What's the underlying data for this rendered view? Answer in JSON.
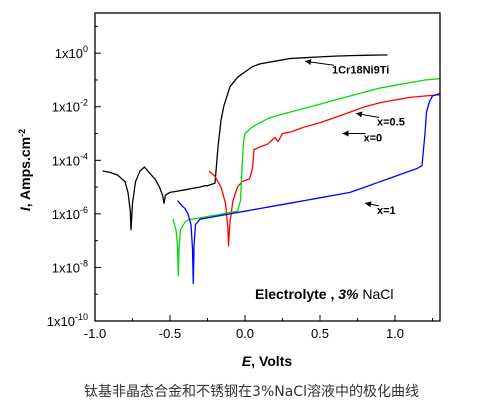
{
  "caption": "钛基非晶态合金和不锈钢在3%NaCl溶液中的极化曲线",
  "chart_data": {
    "type": "line",
    "title": "",
    "xlabel": "E",
    "xlabel_unit": "Volts",
    "ylabel": "I",
    "ylabel_unit": "Amps.cm",
    "ylabel_sup": "-2",
    "xlim": [
      -1.0,
      1.3
    ],
    "ylim_log10": [
      -10,
      1.5
    ],
    "y_scale": "log",
    "grid": false,
    "legend": "none",
    "x_ticks": [
      "-1.0",
      "-0.5",
      "0.0",
      "0.5",
      "1.0"
    ],
    "x_tick_values": [
      -1.0,
      -0.5,
      0.0,
      0.5,
      1.0
    ],
    "y_ticks": [
      {
        "base": "1x10",
        "exp": "0",
        "value": 0
      },
      {
        "base": "1x10",
        "exp": "-2",
        "value": -2
      },
      {
        "base": "1x10",
        "exp": "-4",
        "value": -4
      },
      {
        "base": "1x10",
        "exp": "-6",
        "value": -6
      },
      {
        "base": "1x10",
        "exp": "-8",
        "value": -8
      },
      {
        "base": "1x10",
        "exp": "-10",
        "value": -10
      }
    ],
    "annotations": [
      {
        "text": "1Cr18Ni9Ti",
        "x": 0.58,
        "y_log": -0.75,
        "arrow_to": [
          0.4,
          -0.3
        ]
      },
      {
        "text": "x=0.5",
        "x": 0.88,
        "y_log": -2.7,
        "arrow_to": [
          0.74,
          -2.25
        ]
      },
      {
        "text": "x=0",
        "x": 0.79,
        "y_log": -3.3,
        "arrow_to": [
          0.65,
          -3.0
        ]
      },
      {
        "text": "x=1",
        "x": 0.88,
        "y_log": -6.0,
        "arrow_to": [
          0.8,
          -5.6
        ]
      }
    ],
    "inset_text": {
      "label": "Electrolyte ,",
      "value": "3%",
      "unit": "NaCl"
    },
    "series": [
      {
        "color": "#000000",
        "x": [
          -0.95,
          -0.9,
          -0.85,
          -0.8,
          -0.78,
          -0.765,
          -0.76,
          -0.75,
          -0.73,
          -0.7,
          -0.67,
          -0.64,
          -0.6,
          -0.57,
          -0.55,
          -0.54,
          -0.53,
          -0.5,
          -0.45,
          -0.4,
          -0.35,
          -0.3,
          -0.27,
          -0.25,
          -0.2,
          -0.18,
          -0.16,
          -0.14,
          -0.12,
          -0.1,
          -0.05,
          0.0,
          0.05,
          0.1,
          0.2,
          0.3,
          0.4,
          0.5,
          0.6,
          0.7,
          0.8,
          0.9,
          0.95
        ],
        "y_log": [
          -4.4,
          -4.45,
          -4.55,
          -4.8,
          -5.2,
          -5.9,
          -6.6,
          -5.6,
          -4.8,
          -4.4,
          -4.25,
          -4.45,
          -4.7,
          -5.0,
          -5.3,
          -5.6,
          -5.3,
          -5.2,
          -5.15,
          -5.1,
          -5.05,
          -5.0,
          -4.95,
          -4.95,
          -4.85,
          -3.5,
          -2.5,
          -1.95,
          -1.6,
          -1.25,
          -0.9,
          -0.7,
          -0.5,
          -0.4,
          -0.3,
          -0.2,
          -0.17,
          -0.14,
          -0.11,
          -0.09,
          -0.08,
          -0.07,
          -0.07
        ]
      },
      {
        "color": "#ff0000",
        "x": [
          -0.24,
          -0.2,
          -0.16,
          -0.13,
          -0.115,
          -0.11,
          -0.1,
          -0.08,
          -0.05,
          -0.02,
          0.0,
          0.03,
          0.05,
          0.06,
          0.1,
          0.15,
          0.2,
          0.22,
          0.25,
          0.3,
          0.35,
          0.4,
          0.5,
          0.6,
          0.7,
          0.8,
          0.9,
          1.0,
          1.1,
          1.2,
          1.3
        ],
        "y_log": [
          -4.4,
          -4.6,
          -5.0,
          -5.6,
          -6.5,
          -7.2,
          -6.3,
          -5.5,
          -5.0,
          -4.8,
          -4.75,
          -4.7,
          -4.3,
          -3.6,
          -3.5,
          -3.4,
          -3.15,
          -3.3,
          -3.0,
          -2.95,
          -2.85,
          -2.75,
          -2.6,
          -2.4,
          -2.2,
          -2.0,
          -1.85,
          -1.75,
          -1.65,
          -1.6,
          -1.55
        ]
      },
      {
        "color": "#00dd00",
        "x": [
          -0.48,
          -0.46,
          -0.45,
          -0.445,
          -0.44,
          -0.43,
          -0.4,
          -0.37,
          -0.35,
          -0.3,
          -0.25,
          -0.2,
          -0.15,
          -0.1,
          -0.05,
          -0.03,
          -0.02,
          -0.01,
          0.0,
          0.05,
          0.1,
          0.15,
          0.2,
          0.3,
          0.4,
          0.5,
          0.6,
          0.7,
          0.8,
          0.9,
          1.0,
          1.1,
          1.2,
          1.3
        ],
        "y_log": [
          -6.2,
          -6.6,
          -7.2,
          -8.3,
          -7.3,
          -6.6,
          -6.3,
          -6.2,
          -6.2,
          -6.15,
          -6.1,
          -6.05,
          -6.0,
          -5.95,
          -5.9,
          -5.5,
          -4.3,
          -3.3,
          -3.0,
          -2.75,
          -2.6,
          -2.45,
          -2.35,
          -2.2,
          -2.05,
          -1.9,
          -1.75,
          -1.6,
          -1.45,
          -1.3,
          -1.2,
          -1.1,
          -1.0,
          -0.95
        ]
      },
      {
        "color": "#0000ff",
        "x": [
          -0.45,
          -0.42,
          -0.4,
          -0.38,
          -0.36,
          -0.35,
          -0.345,
          -0.34,
          -0.33,
          -0.3,
          -0.25,
          -0.2,
          -0.15,
          -0.1,
          -0.05,
          0.0,
          0.1,
          0.2,
          0.3,
          0.4,
          0.5,
          0.6,
          0.7,
          0.8,
          0.9,
          1.0,
          1.1,
          1.15,
          1.18,
          1.2,
          1.21,
          1.23,
          1.25,
          1.3
        ],
        "y_log": [
          -5.5,
          -5.7,
          -5.8,
          -6.0,
          -6.4,
          -7.3,
          -8.6,
          -7.2,
          -6.4,
          -6.2,
          -6.15,
          -6.1,
          -6.05,
          -6.0,
          -5.95,
          -5.9,
          -5.8,
          -5.7,
          -5.6,
          -5.5,
          -5.4,
          -5.3,
          -5.2,
          -5.0,
          -4.8,
          -4.6,
          -4.4,
          -4.3,
          -4.2,
          -3.0,
          -2.2,
          -1.8,
          -1.6,
          -1.5
        ]
      }
    ]
  }
}
